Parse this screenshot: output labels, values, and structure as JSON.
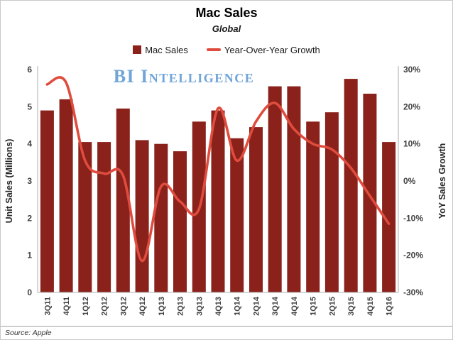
{
  "header": {
    "title": "Mac Sales",
    "subtitle": "Global"
  },
  "legend": [
    {
      "label": "Mac Sales",
      "type": "square",
      "color": "#8a211a"
    },
    {
      "label": "Year-Over-Year Growth",
      "type": "line",
      "color": "#df4c3e"
    }
  ],
  "watermark": "BI Intelligence",
  "watermark_color": "#6fa5d8",
  "source": "Source: Apple",
  "chart_data": {
    "type": "bar",
    "subtype": "bar+line dual axis",
    "title": "Mac Sales",
    "subtitle": "Global",
    "grid": false,
    "legend_position": "top",
    "categories": [
      "3Q11",
      "4Q11",
      "1Q12",
      "2Q12",
      "3Q12",
      "4Q12",
      "1Q13",
      "2Q13",
      "3Q13",
      "4Q13",
      "1Q14",
      "2Q14",
      "3Q14",
      "4Q14",
      "1Q15",
      "2Q15",
      "3Q15",
      "4Q15",
      "1Q16"
    ],
    "series": [
      {
        "name": "Mac Sales",
        "type": "bar",
        "axis": "left",
        "color": "#8a211a",
        "values": [
          4.9,
          5.2,
          4.05,
          4.05,
          4.95,
          4.1,
          4.0,
          3.8,
          4.6,
          4.9,
          4.15,
          4.45,
          5.55,
          5.55,
          4.6,
          4.85,
          5.75,
          5.35,
          4.05
        ]
      },
      {
        "name": "Year-Over-Year Growth",
        "type": "line",
        "axis": "right",
        "color": "#df4c3e",
        "values": [
          26,
          26.5,
          5.5,
          2,
          1.5,
          -21.5,
          -1.5,
          -5.5,
          -7.5,
          19.5,
          5.5,
          16,
          21,
          14,
          10,
          8.5,
          3.5,
          -4,
          -11.5
        ]
      }
    ],
    "left_axis": {
      "title": "Unit Sales (Millions)",
      "min": 0,
      "max": 6,
      "ticks": [
        {
          "value": 6,
          "label": "6"
        },
        {
          "value": 5,
          "label": "5"
        },
        {
          "value": 4,
          "label": "4"
        },
        {
          "value": 3,
          "label": "3"
        },
        {
          "value": 2,
          "label": "2"
        },
        {
          "value": 1,
          "label": "1"
        },
        {
          "value": 0,
          "label": "0"
        }
      ]
    },
    "right_axis": {
      "title": "YoY Sales Growth",
      "min": -30,
      "max": 30,
      "ticks": [
        {
          "value": 30,
          "label": "30%"
        },
        {
          "value": 20,
          "label": "20%"
        },
        {
          "value": 10,
          "label": "10%"
        },
        {
          "value": 0,
          "label": "0%"
        },
        {
          "value": -10,
          "label": "-10%"
        },
        {
          "value": -20,
          "label": "-20%"
        },
        {
          "value": -30,
          "label": "-30%"
        }
      ]
    },
    "axis_color": "#bfbfbf"
  }
}
